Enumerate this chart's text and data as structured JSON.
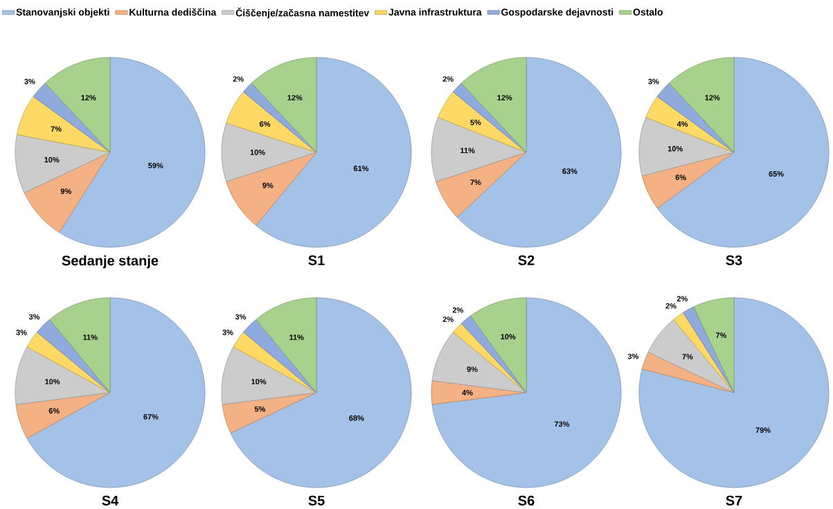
{
  "chart_data": [
    {
      "type": "pie",
      "title": "Sedanje stanje",
      "legend": "top",
      "categories": [
        "Stanovanjski objekti",
        "Kulturna dediščina",
        "Čiščenje/začasna namestitev",
        "Javna infrastruktura",
        "Gospodarske dejavnosti",
        "Ostalo"
      ],
      "values": [
        59,
        9,
        10,
        7,
        3,
        12
      ],
      "value_labels": [
        "59%",
        "9%",
        "10%",
        "7%",
        "3%",
        "12%"
      ],
      "colors": [
        "#a4c2e8",
        "#f4b183",
        "#cccccc",
        "#ffd966",
        "#8faadc",
        "#a9d18e"
      ]
    },
    {
      "type": "pie",
      "title": "S1",
      "values": [
        61,
        9,
        10,
        6,
        2,
        12
      ],
      "value_labels": [
        "61%",
        "9%",
        "10%",
        "6%",
        "2%",
        "12%"
      ],
      "colors": [
        "#a4c2e8",
        "#f4b183",
        "#cccccc",
        "#ffd966",
        "#8faadc",
        "#a9d18e"
      ]
    },
    {
      "type": "pie",
      "title": "S2",
      "values": [
        63,
        7,
        11,
        5,
        2,
        12
      ],
      "value_labels": [
        "63%",
        "7%",
        "11%",
        "5%",
        "2%",
        "12%"
      ],
      "colors": [
        "#a4c2e8",
        "#f4b183",
        "#cccccc",
        "#ffd966",
        "#8faadc",
        "#a9d18e"
      ]
    },
    {
      "type": "pie",
      "title": "S3",
      "values": [
        65,
        6,
        10,
        4,
        3,
        12
      ],
      "value_labels": [
        "65%",
        "6%",
        "10%",
        "4%",
        "3%",
        "12%"
      ],
      "colors": [
        "#a4c2e8",
        "#f4b183",
        "#cccccc",
        "#ffd966",
        "#8faadc",
        "#a9d18e"
      ]
    },
    {
      "type": "pie",
      "title": "S4",
      "values": [
        67,
        6,
        10,
        3,
        3,
        11
      ],
      "value_labels": [
        "67%",
        "6%",
        "10%",
        "3%",
        "3%",
        "11%"
      ],
      "colors": [
        "#a4c2e8",
        "#f4b183",
        "#cccccc",
        "#ffd966",
        "#8faadc",
        "#a9d18e"
      ]
    },
    {
      "type": "pie",
      "title": "S5",
      "values": [
        68,
        5,
        10,
        3,
        3,
        11
      ],
      "value_labels": [
        "68%",
        "5%",
        "10%",
        "3%",
        "3%",
        "11%"
      ],
      "colors": [
        "#a4c2e8",
        "#f4b183",
        "#cccccc",
        "#ffd966",
        "#8faadc",
        "#a9d18e"
      ]
    },
    {
      "type": "pie",
      "title": "S6",
      "values": [
        73,
        4,
        9,
        2,
        2,
        10
      ],
      "value_labels": [
        "73%",
        "4%",
        "9%",
        "2%",
        "2%",
        "10%"
      ],
      "colors": [
        "#a4c2e8",
        "#f4b183",
        "#cccccc",
        "#ffd966",
        "#8faadc",
        "#a9d18e"
      ]
    },
    {
      "type": "pie",
      "title": "S7",
      "values": [
        79,
        3,
        7,
        2,
        2,
        7
      ],
      "value_labels": [
        "79%",
        "3%",
        "7%",
        "2%",
        "2%",
        "7%"
      ],
      "colors": [
        "#a4c2e8",
        "#f4b183",
        "#cccccc",
        "#ffd966",
        "#8faadc",
        "#a9d18e"
      ]
    }
  ]
}
